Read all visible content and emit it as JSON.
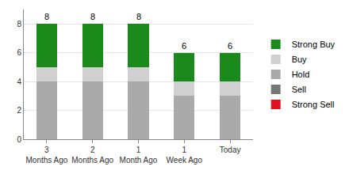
{
  "chart_data": {
    "type": "bar",
    "stacked": true,
    "categories": [
      "3 Months Ago",
      "2 Months Ago",
      "1 Month Ago",
      "1 Week Ago",
      "Today"
    ],
    "series": [
      {
        "name": "Strong Buy",
        "color": "#1a8a1a",
        "values": [
          3,
          3,
          3,
          2,
          2
        ]
      },
      {
        "name": "Buy",
        "color": "#d0d0d0",
        "values": [
          1,
          1,
          1,
          1,
          1
        ]
      },
      {
        "name": "Hold",
        "color": "#aaaaaa",
        "values": [
          4,
          4,
          4,
          3,
          3
        ]
      },
      {
        "name": "Sell",
        "color": "#777777",
        "values": [
          0,
          0,
          0,
          0,
          0
        ]
      },
      {
        "name": "Strong Sell",
        "color": "#e0141e",
        "values": [
          0,
          0,
          0,
          0,
          0
        ]
      }
    ],
    "totals": [
      8,
      8,
      8,
      6,
      6
    ],
    "ylim": [
      0,
      9
    ],
    "yticks": [
      0,
      2,
      4,
      6,
      8
    ],
    "grid": true,
    "legend": "right"
  }
}
